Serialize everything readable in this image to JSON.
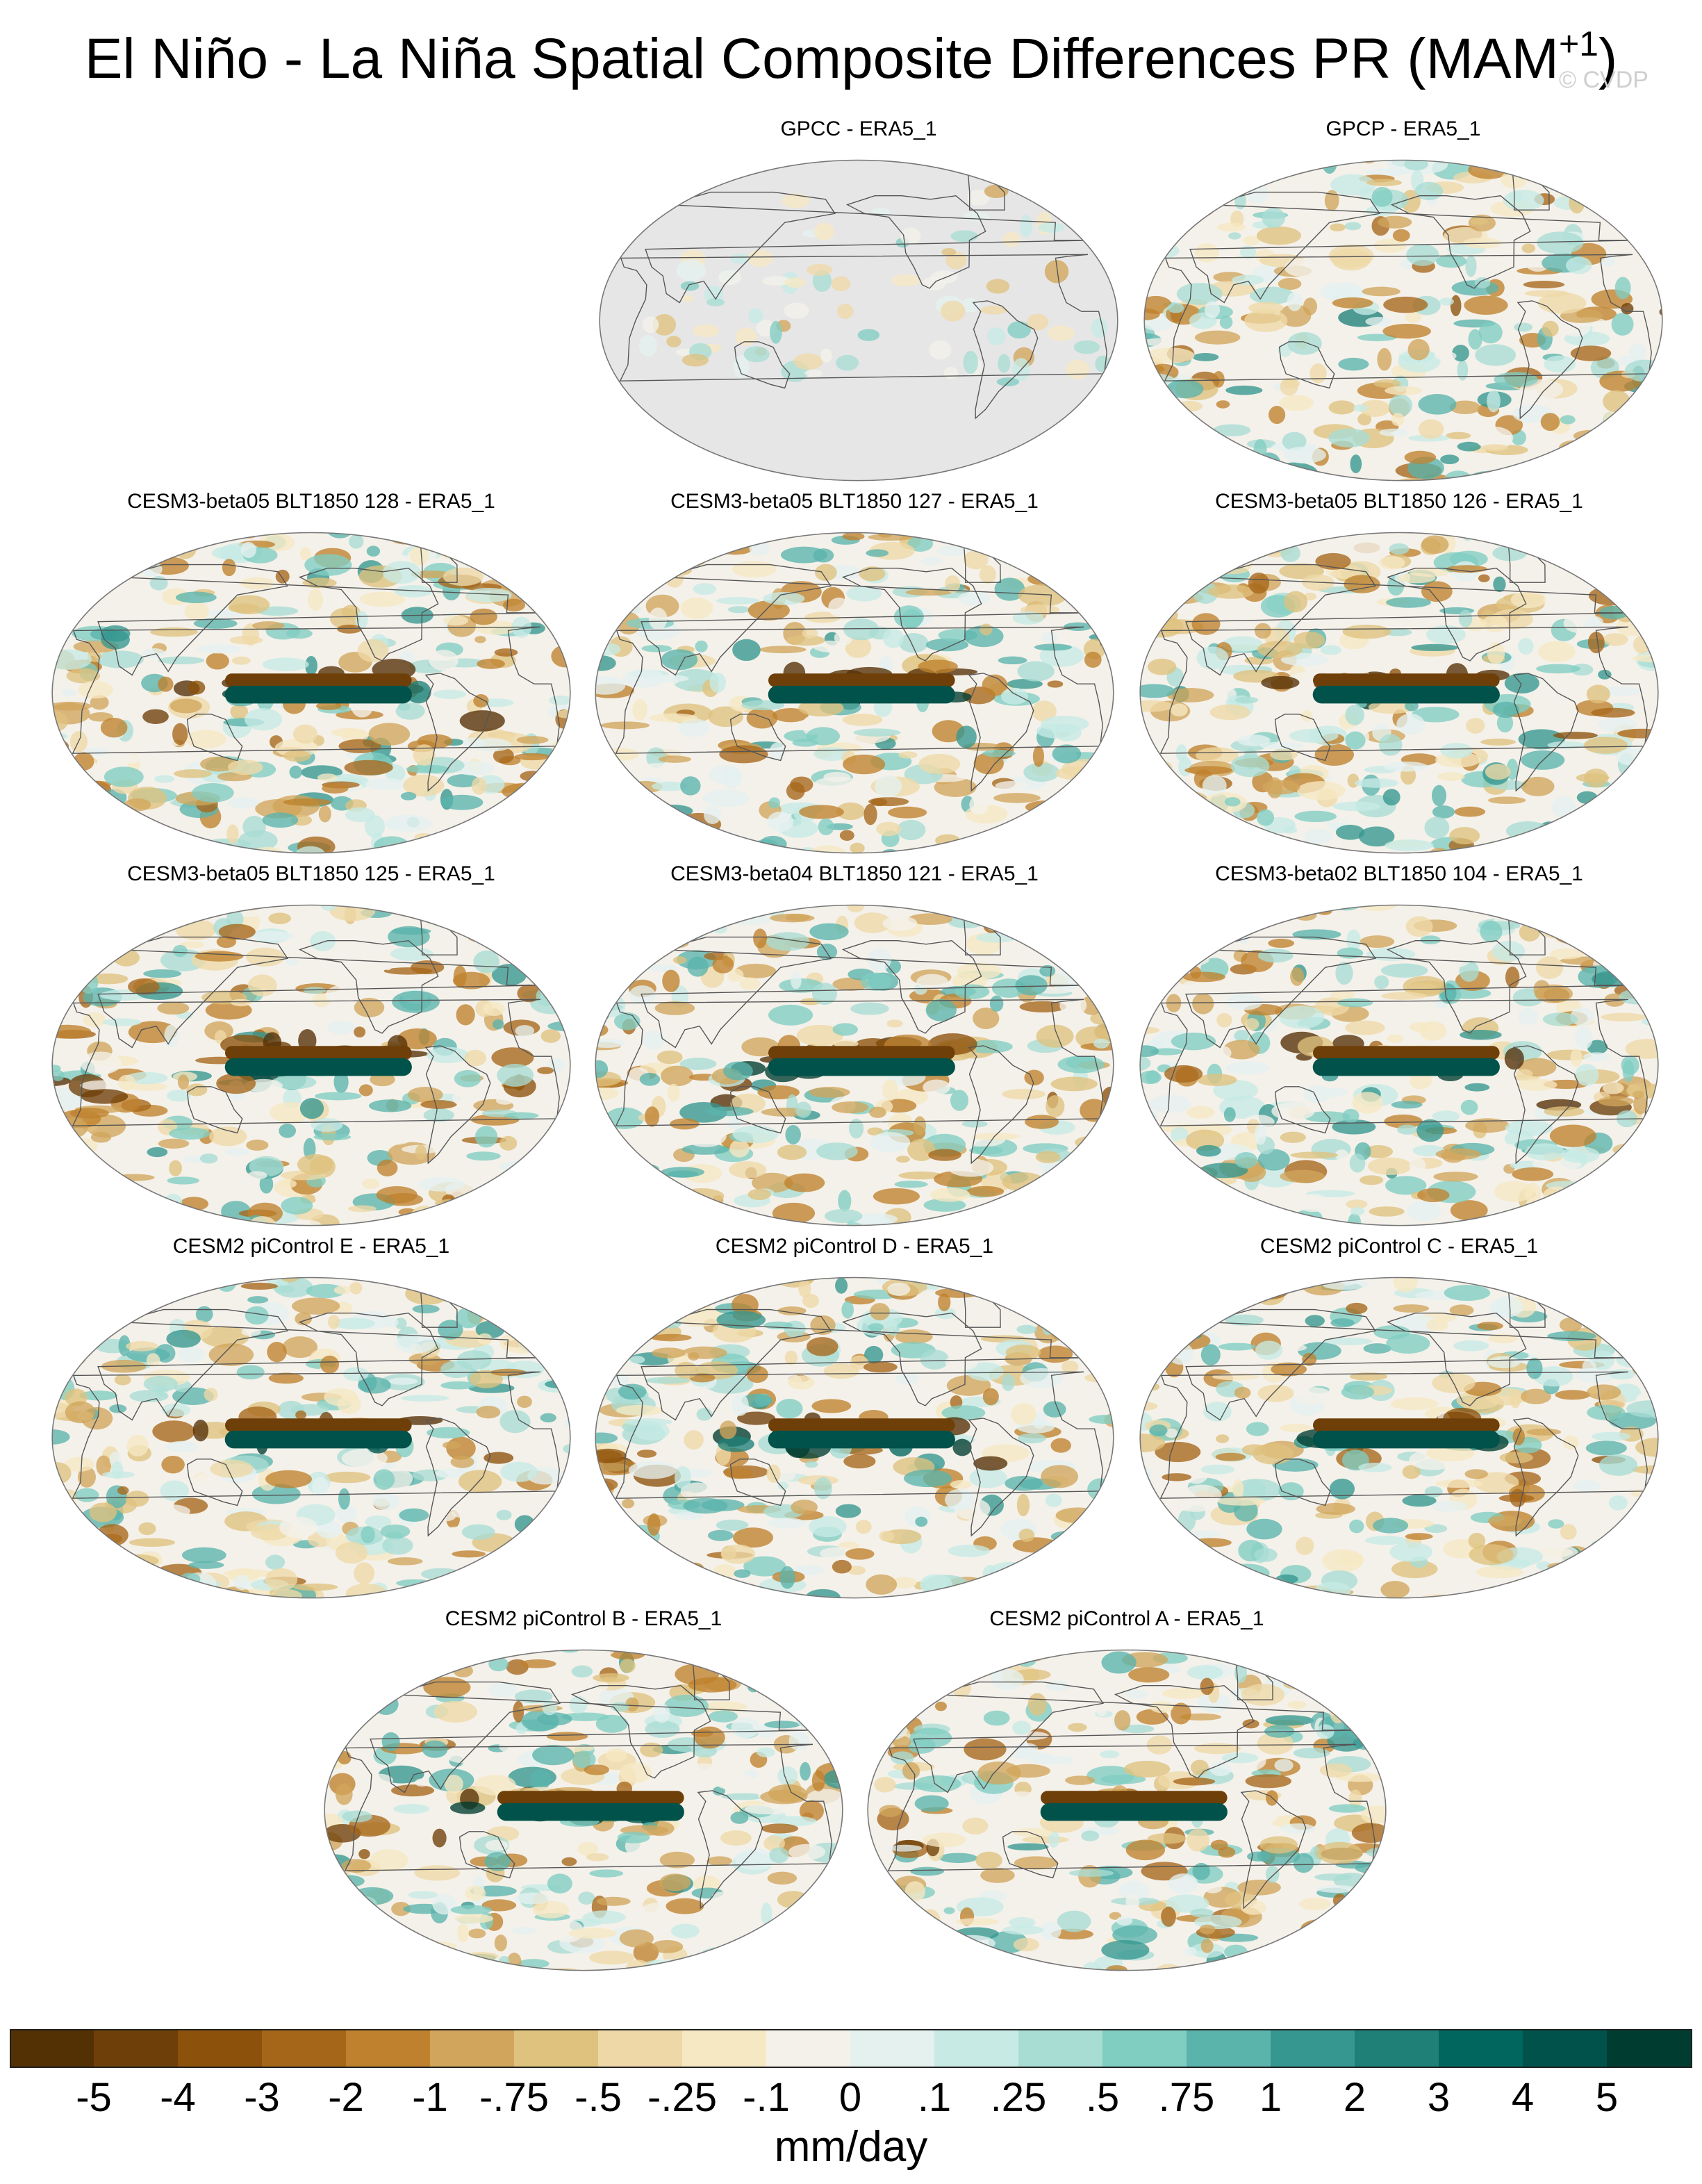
{
  "figure": {
    "title": "El Niño - La Niña Spatial Composite Differences PR (MAM",
    "title_superscript": "+1",
    "title_close": ")",
    "watermark": "© CVDP"
  },
  "panels": [
    {
      "label": "GPCC - ERA5_1",
      "style": "gpcc",
      "seed": 11
    },
    {
      "label": "GPCP - ERA5_1",
      "style": "gpcp",
      "seed": 23
    },
    {
      "label": "CESM3-beta05 BLT1850 128 - ERA5_1",
      "style": "model",
      "seed": 37
    },
    {
      "label": "CESM3-beta05 BLT1850 127 - ERA5_1",
      "style": "model",
      "seed": 41
    },
    {
      "label": "CESM3-beta05 BLT1850 126 - ERA5_1",
      "style": "model",
      "seed": 53
    },
    {
      "label": "CESM3-beta05 BLT1850 125 - ERA5_1",
      "style": "model",
      "seed": 67
    },
    {
      "label": "CESM3-beta04 BLT1850 121 - ERA5_1",
      "style": "model",
      "seed": 71
    },
    {
      "label": "CESM3-beta02 BLT1850 104 - ERA5_1",
      "style": "model",
      "seed": 83
    },
    {
      "label": "CESM2 piControl E - ERA5_1",
      "style": "model",
      "seed": 97
    },
    {
      "label": "CESM2 piControl D - ERA5_1",
      "style": "model",
      "seed": 101
    },
    {
      "label": "CESM2 piControl C - ERA5_1",
      "style": "model",
      "seed": 113
    },
    {
      "label": "CESM2 piControl B - ERA5_1",
      "style": "model",
      "seed": 127
    },
    {
      "label": "CESM2 piControl A - ERA5_1",
      "style": "model",
      "seed": 131
    }
  ],
  "colorbar": {
    "units": "mm/day",
    "tick_labels": [
      "-5",
      "-4",
      "-3",
      "-2",
      "-1",
      "-.75",
      "-.5",
      "-.25",
      "-.1",
      "0",
      ".1",
      ".25",
      ".5",
      ".75",
      "1",
      "2",
      "3",
      "4",
      "5"
    ],
    "colors": [
      "#543005",
      "#6e3f08",
      "#8c510a",
      "#a6661a",
      "#bf812d",
      "#d1a55b",
      "#dfc27d",
      "#eed8a7",
      "#f6e8c3",
      "#f4f1ea",
      "#e4f1ef",
      "#c7eae5",
      "#a8ddd3",
      "#80cdc1",
      "#5ab4ac",
      "#35978f",
      "#1f8078",
      "#01665e",
      "#00524a",
      "#003c30"
    ],
    "land_mask_color": "#e6e6e6"
  }
}
